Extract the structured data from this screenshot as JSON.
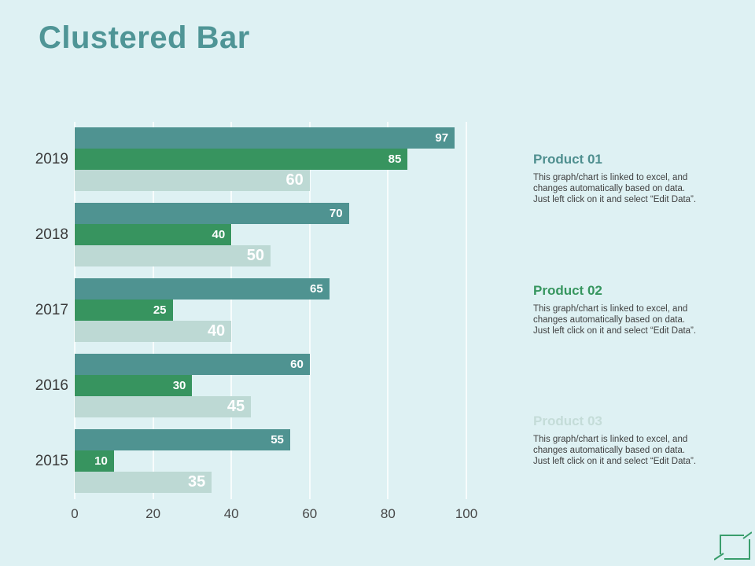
{
  "slide": {
    "title": "Clustered Bar",
    "title_color": "#4f9596",
    "background_color": "#def1f3"
  },
  "chart_data": {
    "type": "bar",
    "orientation": "horizontal",
    "title": "",
    "xlabel": "",
    "ylabel": "",
    "categories": [
      "2019",
      "2018",
      "2017",
      "2016",
      "2015"
    ],
    "series": [
      {
        "name": "Product 01",
        "color": "#4f9391",
        "values": [
          97,
          70,
          65,
          60,
          55
        ]
      },
      {
        "name": "Product 02",
        "color": "#37945f",
        "values": [
          85,
          40,
          25,
          30,
          10
        ]
      },
      {
        "name": "Product 03",
        "color": "#bdd9d4",
        "values": [
          60,
          50,
          40,
          45,
          35
        ]
      }
    ],
    "xlim": [
      0,
      100
    ],
    "x_ticks": [
      0,
      20,
      40,
      60,
      80,
      100
    ],
    "grid": "vertical-gridlines",
    "legend_position": "right-text-blocks",
    "value_labels": "inside-end-white"
  },
  "legend": {
    "items": [
      {
        "title": "Product 01",
        "title_color": "#4f8f8f",
        "lines": [
          "This graph/chart is linked to excel, and",
          "changes automatically based on data.",
          "Just left click on it and select “Edit Data”."
        ]
      },
      {
        "title": "Product 02",
        "title_color": "#37965f",
        "lines": [
          "This graph/chart is linked to excel, and",
          "changes automatically based on data.",
          "Just left click on it and select “Edit Data”."
        ]
      },
      {
        "title": "Product 03",
        "title_color": "#c4dcd8",
        "lines": [
          "This graph/chart is linked to excel, and",
          "changes automatically based on data.",
          "Just left click on it and select “Edit Data”."
        ]
      }
    ]
  },
  "footer": {
    "icon": "frame-slash-icon",
    "icon_color": "#3a9e6c"
  }
}
